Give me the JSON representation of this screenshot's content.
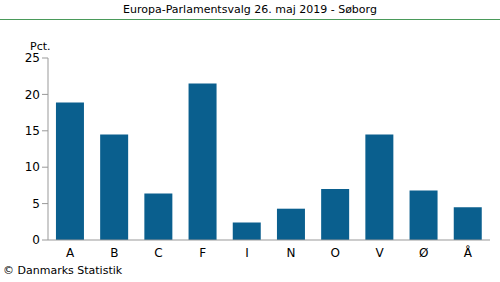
{
  "chart_data": {
    "type": "bar",
    "title": "Europa-Parlamentsvalg 26. maj 2019 - Søborg",
    "y_label": "Pct.",
    "source": "© Danmarks Statistik",
    "categories": [
      "A",
      "B",
      "C",
      "F",
      "I",
      "N",
      "O",
      "V",
      "Ø",
      "Å"
    ],
    "values": [
      18.9,
      14.5,
      6.4,
      21.5,
      2.4,
      4.3,
      7.0,
      14.5,
      6.8,
      4.5
    ],
    "color": "#0a5f8e",
    "ylim": [
      0,
      25
    ],
    "yticks": [
      0,
      5,
      10,
      15,
      20,
      25
    ],
    "grid": false
  }
}
